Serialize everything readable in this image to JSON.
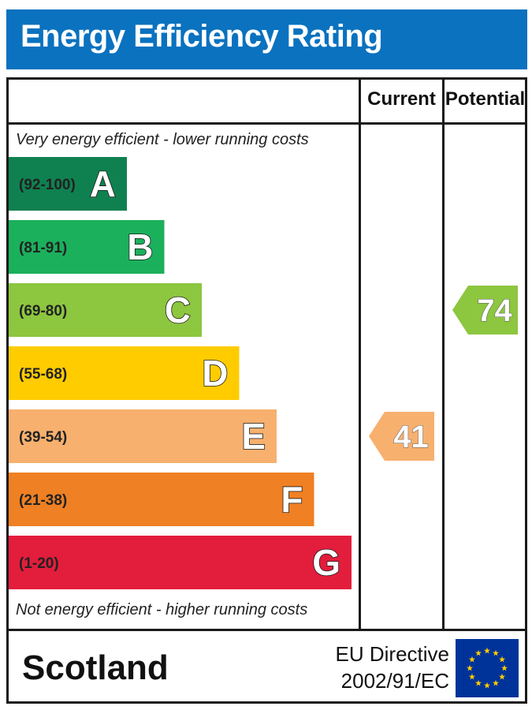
{
  "title": "Energy Efficiency Rating",
  "columns": {
    "current": "Current",
    "potential": "Potential"
  },
  "top_caption": "Very energy efficient - lower running costs",
  "bottom_caption": "Not energy efficient - higher running costs",
  "footer": {
    "country": "Scotland",
    "directive_line1": "EU Directive",
    "directive_line2": "2002/91/EC"
  },
  "chart_data": {
    "type": "bar",
    "bands": [
      {
        "range": "(92-100)",
        "letter": "A",
        "color": "#0f8150"
      },
      {
        "range": "(81-91)",
        "letter": "B",
        "color": "#1bb05c"
      },
      {
        "range": "(69-80)",
        "letter": "C",
        "color": "#8dc63f"
      },
      {
        "range": "(55-68)",
        "letter": "D",
        "color": "#ffcc00"
      },
      {
        "range": "(39-54)",
        "letter": "E",
        "color": "#f7b06e"
      },
      {
        "range": "(21-38)",
        "letter": "F",
        "color": "#ef8023"
      },
      {
        "range": "(1-20)",
        "letter": "G",
        "color": "#e31d3c"
      }
    ],
    "current": {
      "value": 41,
      "band": "E",
      "color": "#f7b06e"
    },
    "potential": {
      "value": 74,
      "band": "C",
      "color": "#8dc63f"
    }
  },
  "colors": {
    "title_bar": "#0a72bf",
    "eu_flag": "#003399",
    "eu_stars": "#ffcc00"
  }
}
